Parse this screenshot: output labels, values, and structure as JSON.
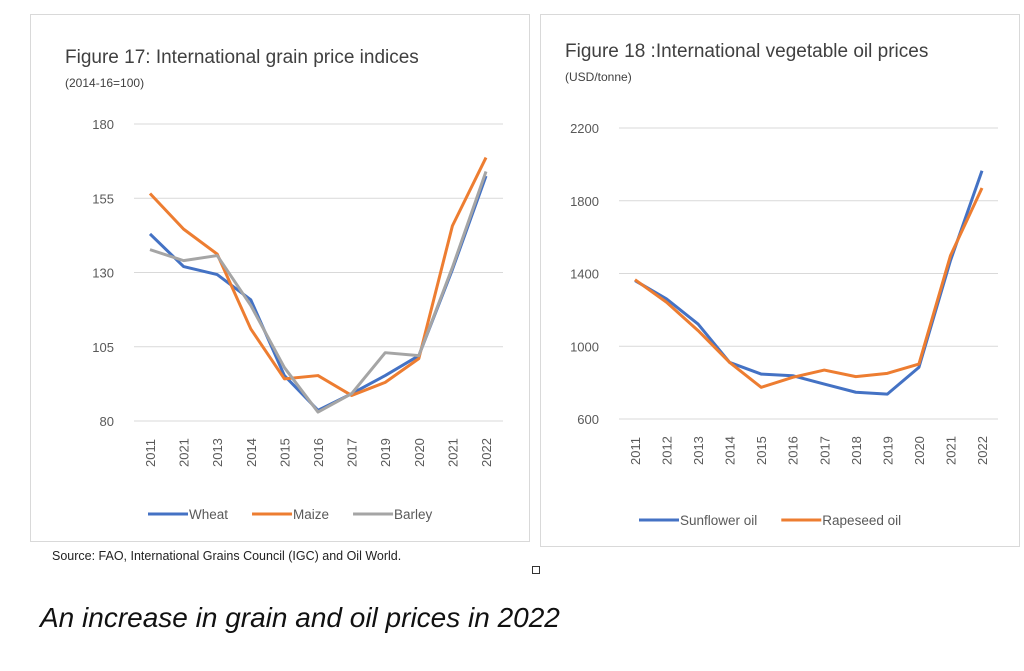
{
  "chart_data": [
    {
      "type": "line",
      "title": "Figure 17: International grain price indices",
      "subtitle": "(2014-16=100)",
      "categories": [
        "2011",
        "2021",
        "2013",
        "2014",
        "2015",
        "2016",
        "2017",
        "2019",
        "2020",
        "2021",
        "2022"
      ],
      "yticks": [
        80,
        105,
        130,
        155,
        180
      ],
      "ylim": [
        80,
        180
      ],
      "grid": true,
      "legend": "bottom",
      "series": [
        {
          "name": "Wheat",
          "color": "#4472c4",
          "values": [
            143,
            132,
            129.3,
            120.8,
            95.3,
            83.6,
            89.2,
            95.3,
            102,
            131,
            162.5
          ]
        },
        {
          "name": "Maize",
          "color": "#ed7d31",
          "values": [
            156.6,
            144.6,
            136.2,
            111,
            94.2,
            95.3,
            88.6,
            93,
            101,
            145.7,
            168.7
          ]
        },
        {
          "name": "Barley",
          "color": "#a5a5a5",
          "values": [
            137.7,
            134,
            135.7,
            118.9,
            98,
            83,
            89.2,
            103,
            102,
            131.7,
            164
          ]
        }
      ]
    },
    {
      "type": "line",
      "title": "Figure 18 :International vegetable oil prices",
      "subtitle": "(USD/tonne)",
      "categories": [
        "2011",
        "2012",
        "2013",
        "2014",
        "2015",
        "2016",
        "2017",
        "2018",
        "2019",
        "2020",
        "2021",
        "2022"
      ],
      "yticks": [
        600,
        1000,
        1400,
        1800,
        2200
      ],
      "ylim": [
        600,
        2200
      ],
      "grid": true,
      "legend": "bottom",
      "series": [
        {
          "name": "Sunflower oil",
          "color": "#4472c4",
          "values": [
            1361,
            1260,
            1122,
            911,
            847,
            838,
            792,
            747,
            737,
            884,
            1471,
            1965
          ]
        },
        {
          "name": "Rapeseed oil",
          "color": "#ed7d31",
          "values": [
            1366,
            1242,
            1086,
            911,
            774,
            829,
            869,
            833,
            851,
            902,
            1498,
            1870
          ]
        }
      ]
    }
  ],
  "source": "Source: FAO, International Grains Council (IGC) and Oil World.",
  "caption": "An increase in grain and oil prices in 2022"
}
